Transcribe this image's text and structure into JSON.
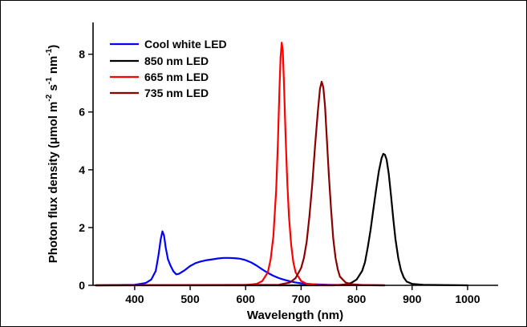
{
  "chart_data": {
    "type": "line",
    "title": "",
    "xlabel": "Wavelength (nm)",
    "ylabel_main": "Photon flux density (μmol m",
    "ylabel_sup1": "-2",
    "ylabel_mid1": " s",
    "ylabel_sup2": "-1",
    "ylabel_mid2": " nm",
    "ylabel_sup3": "-1",
    "ylabel_end": ")",
    "xlim": [
      325,
      1055
    ],
    "ylim": [
      0,
      9.1
    ],
    "xticks": [
      400,
      500,
      600,
      700,
      800,
      900,
      1000
    ],
    "yticks": [
      0,
      2,
      4,
      6,
      8
    ],
    "grid": false,
    "legend_position": "top-left",
    "series": [
      {
        "name": "Cool white LED",
        "color": "#0000ff",
        "points": [
          [
            330,
            0
          ],
          [
            400,
            0.02
          ],
          [
            420,
            0.08
          ],
          [
            430,
            0.2
          ],
          [
            438,
            0.5
          ],
          [
            443,
            1.05
          ],
          [
            447,
            1.6
          ],
          [
            450,
            1.87
          ],
          [
            453,
            1.72
          ],
          [
            456,
            1.3
          ],
          [
            460,
            0.9
          ],
          [
            465,
            0.67
          ],
          [
            470,
            0.48
          ],
          [
            475,
            0.38
          ],
          [
            480,
            0.4
          ],
          [
            490,
            0.52
          ],
          [
            500,
            0.67
          ],
          [
            510,
            0.77
          ],
          [
            520,
            0.83
          ],
          [
            530,
            0.87
          ],
          [
            540,
            0.9
          ],
          [
            550,
            0.93
          ],
          [
            560,
            0.95
          ],
          [
            570,
            0.95
          ],
          [
            580,
            0.94
          ],
          [
            590,
            0.92
          ],
          [
            600,
            0.87
          ],
          [
            610,
            0.79
          ],
          [
            620,
            0.68
          ],
          [
            630,
            0.55
          ],
          [
            640,
            0.43
          ],
          [
            650,
            0.33
          ],
          [
            660,
            0.25
          ],
          [
            670,
            0.19
          ],
          [
            680,
            0.14
          ],
          [
            690,
            0.1
          ],
          [
            700,
            0.07
          ],
          [
            720,
            0.04
          ],
          [
            750,
            0.02
          ],
          [
            780,
            0.01
          ],
          [
            850,
            0.0
          ]
        ]
      },
      {
        "name": "850 nm LED",
        "color": "#000000",
        "points": [
          [
            330,
            0
          ],
          [
            760,
            0
          ],
          [
            780,
            0.03
          ],
          [
            790,
            0.08
          ],
          [
            800,
            0.2
          ],
          [
            810,
            0.5
          ],
          [
            815,
            0.8
          ],
          [
            820,
            1.3
          ],
          [
            825,
            1.9
          ],
          [
            830,
            2.6
          ],
          [
            835,
            3.3
          ],
          [
            840,
            3.95
          ],
          [
            845,
            4.4
          ],
          [
            848,
            4.55
          ],
          [
            851,
            4.52
          ],
          [
            854,
            4.35
          ],
          [
            858,
            3.85
          ],
          [
            862,
            3.1
          ],
          [
            866,
            2.3
          ],
          [
            870,
            1.6
          ],
          [
            875,
            0.95
          ],
          [
            880,
            0.52
          ],
          [
            885,
            0.27
          ],
          [
            890,
            0.13
          ],
          [
            900,
            0.05
          ],
          [
            920,
            0.02
          ],
          [
            950,
            0.01
          ],
          [
            1000,
            0.0
          ]
        ]
      },
      {
        "name": "665 nm LED",
        "color": "#ff0000",
        "points": [
          [
            330,
            0
          ],
          [
            600,
            0.01
          ],
          [
            620,
            0.05
          ],
          [
            630,
            0.15
          ],
          [
            640,
            0.45
          ],
          [
            645,
            0.9
          ],
          [
            650,
            1.7
          ],
          [
            655,
            3.3
          ],
          [
            658,
            4.9
          ],
          [
            661,
            6.8
          ],
          [
            663,
            7.9
          ],
          [
            665,
            8.4
          ],
          [
            667,
            8.1
          ],
          [
            669,
            7.0
          ],
          [
            672,
            5.2
          ],
          [
            675,
            3.6
          ],
          [
            678,
            2.4
          ],
          [
            682,
            1.4
          ],
          [
            686,
            0.8
          ],
          [
            690,
            0.45
          ],
          [
            700,
            0.15
          ],
          [
            710,
            0.05
          ],
          [
            730,
            0.01
          ],
          [
            850,
            0.0
          ]
        ]
      },
      {
        "name": "735 nm LED",
        "color": "#8b0000",
        "points": [
          [
            330,
            0
          ],
          [
            660,
            0.02
          ],
          [
            680,
            0.1
          ],
          [
            690,
            0.25
          ],
          [
            700,
            0.6
          ],
          [
            705,
            0.95
          ],
          [
            710,
            1.5
          ],
          [
            715,
            2.4
          ],
          [
            720,
            3.5
          ],
          [
            725,
            4.8
          ],
          [
            730,
            6.0
          ],
          [
            734,
            6.8
          ],
          [
            737,
            7.05
          ],
          [
            740,
            6.85
          ],
          [
            743,
            6.2
          ],
          [
            746,
            5.2
          ],
          [
            750,
            3.8
          ],
          [
            754,
            2.6
          ],
          [
            758,
            1.6
          ],
          [
            762,
            0.95
          ],
          [
            766,
            0.55
          ],
          [
            770,
            0.3
          ],
          [
            780,
            0.1
          ],
          [
            790,
            0.04
          ],
          [
            810,
            0.01
          ],
          [
            850,
            0.0
          ]
        ]
      }
    ]
  }
}
